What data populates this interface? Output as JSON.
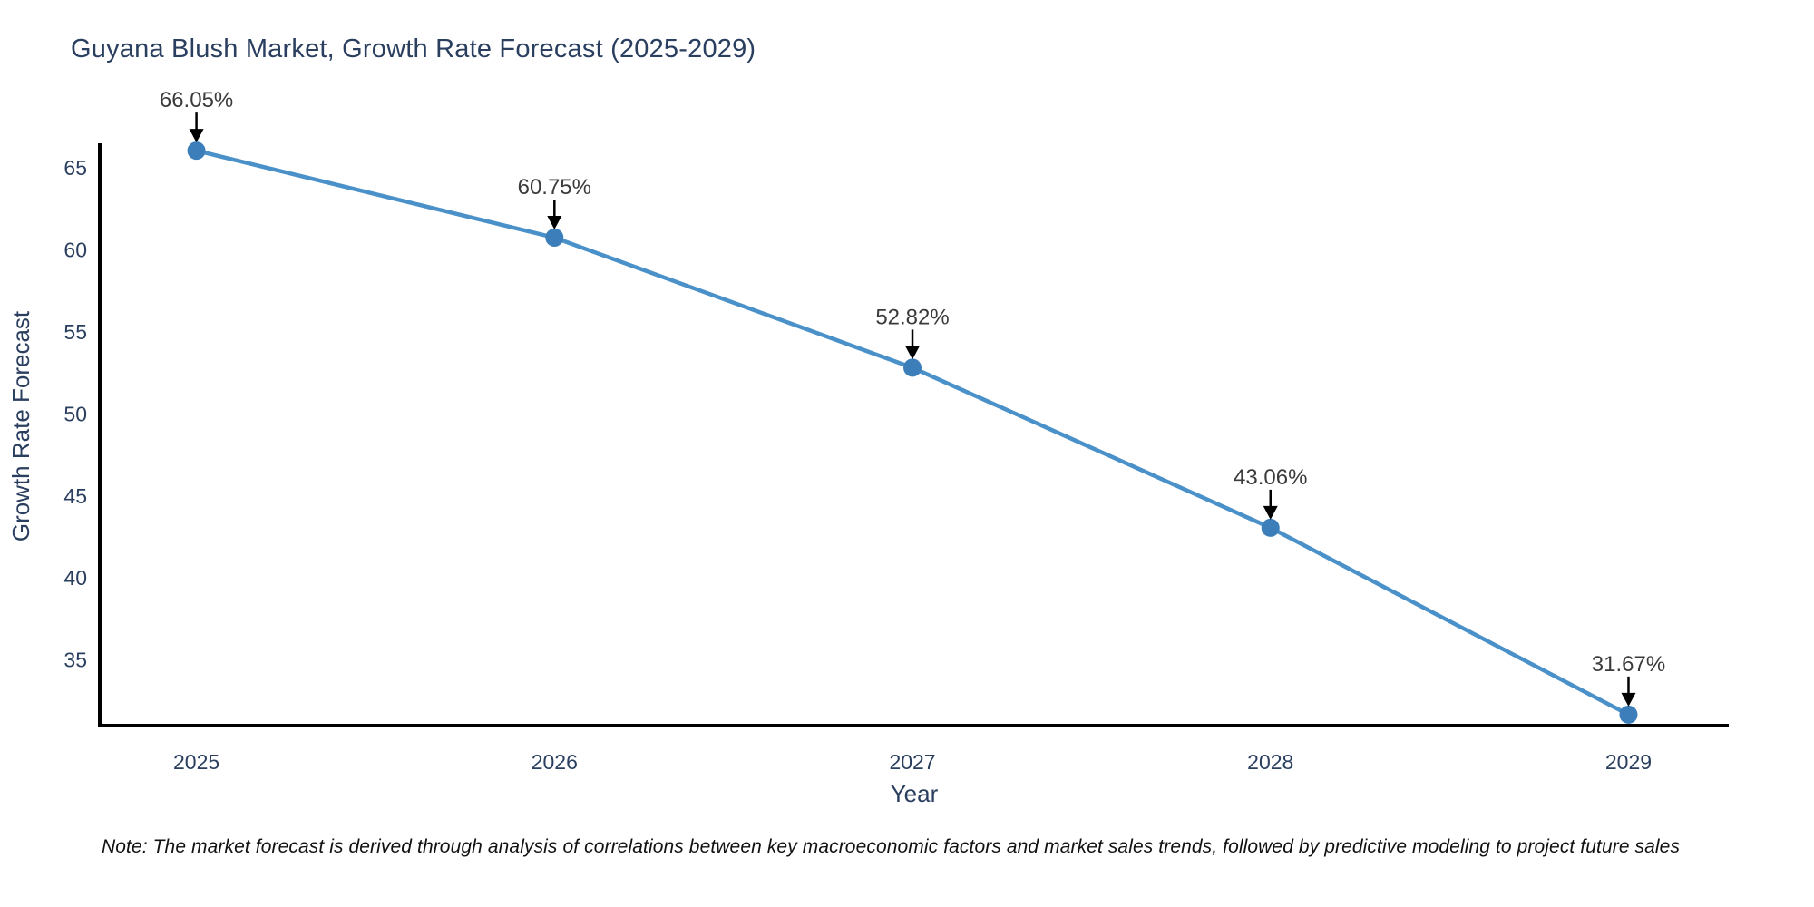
{
  "title": {
    "text": "Guyana Blush Market, Growth Rate Forecast (2025-2029)",
    "color": "#2a3f5f"
  },
  "note": {
    "text": "Note: The market forecast is derived through analysis of correlations between key macroeconomic factors and market sales trends, followed by predictive modeling to project future sales"
  },
  "chart_data": {
    "type": "line",
    "title": "Guyana Blush Market, Growth Rate Forecast (2025-2029)",
    "x": [
      2025,
      2026,
      2027,
      2028,
      2029
    ],
    "series": [
      {
        "name": "Growth Rate Forecast",
        "values": [
          66.05,
          60.75,
          52.82,
          43.06,
          31.67
        ]
      }
    ],
    "point_labels": [
      "66.05%",
      "60.75%",
      "52.82%",
      "43.06%",
      "31.67%"
    ],
    "xlabel": "Year",
    "ylabel": "Growth Rate Forecast",
    "x_ticks": [
      "2025",
      "2026",
      "2027",
      "2028",
      "2029"
    ],
    "y_ticks": [
      "35",
      "40",
      "45",
      "50",
      "55",
      "60",
      "65"
    ],
    "xlim": [
      2024.73,
      2029.28
    ],
    "ylim": [
      31.0,
      66.5
    ],
    "grid": false,
    "legend": "none",
    "colors": {
      "line": "#4a91c9",
      "marker": "#3c7eb9",
      "axis": "#000000",
      "tick_label": "#2a3f5f",
      "axis_title": "#2a3f5f",
      "point_label": "#3b3b3b",
      "arrow": "#000000"
    }
  }
}
